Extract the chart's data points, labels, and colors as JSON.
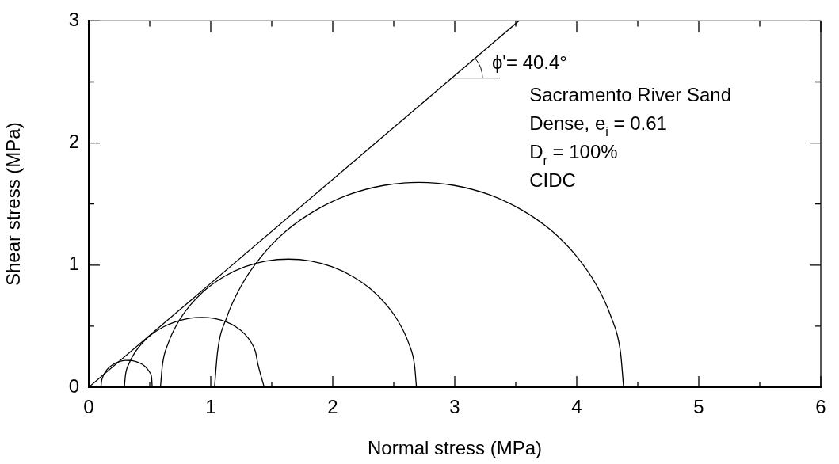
{
  "chart_data": {
    "type": "line",
    "xlabel": "Normal stress (MPa)",
    "ylabel": "Shear stress (MPa)",
    "xlim": [
      0,
      6
    ],
    "ylim": [
      0,
      3
    ],
    "xticks": [
      0,
      {
        "value": 0.5,
        "label": null
      },
      1,
      {
        "value": 1.5,
        "label": null
      },
      2,
      {
        "value": 2.5,
        "label": null
      },
      3,
      {
        "value": 3.5,
        "label": null
      },
      4,
      {
        "value": 4.5,
        "label": null
      },
      5,
      {
        "value": 5.5,
        "label": null
      },
      6
    ],
    "yticks": [
      0,
      {
        "value": 0.5,
        "label": null
      },
      1,
      {
        "value": 1.5,
        "label": null
      },
      2,
      {
        "value": 2.5,
        "label": null
      },
      3
    ],
    "grid": false,
    "legend": false,
    "marker": "none",
    "line_style": "solid",
    "annotations": [
      {
        "text": "ϕ'= 40.4°",
        "x": 2.98,
        "y": 2.53
      },
      "Sacramento River Sand",
      "Dense, e$_{i}$ = 0.61",
      "D$_{r}$ = 100%",
      "CIDC"
    ],
    "series": [
      {
        "color": "#000000",
        "x": [
          0,
          3.525
        ],
        "values": [
          0,
          3
        ]
      },
      {
        "color": "#000000",
        "x": [
          0.1,
          0.104,
          0.115,
          0.134,
          0.159,
          0.19,
          0.225,
          0.262,
          0.302,
          0.343,
          0.382,
          0.419,
          0.452,
          0.479,
          0.501,
          0.515,
          0.52
        ],
        "values": [
          0,
          0.043,
          0.084,
          0.122,
          0.154,
          0.18,
          0.2,
          0.213,
          0.22,
          0.219,
          0.212,
          0.198,
          0.178,
          0.152,
          0.12,
          0.082,
          0
        ]
      },
      {
        "color": "#000000",
        "x": [
          0.292,
          0.301,
          0.331,
          0.379,
          0.444,
          0.524,
          0.616,
          0.716,
          0.82,
          0.925,
          1.027,
          1.122,
          1.206,
          1.277,
          1.331,
          1.367,
          1.384,
          1.438
        ],
        "values": [
          0,
          0.099,
          0.196,
          0.286,
          0.368,
          0.439,
          0.496,
          0.538,
          0.564,
          0.572,
          0.563,
          0.537,
          0.494,
          0.437,
          0.368,
          0.289,
          0.2,
          0
        ]
      },
      {
        "color": "#000000",
        "x": [
          0.588,
          0.604,
          0.651,
          0.728,
          0.833,
          0.963,
          1.113,
          1.279,
          1.455,
          1.637,
          1.819,
          1.995,
          2.161,
          2.311,
          2.441,
          2.546,
          2.623,
          2.67,
          2.686
        ],
        "values": [
          0,
          0.182,
          0.359,
          0.524,
          0.674,
          0.804,
          0.908,
          0.986,
          1.033,
          1.049,
          1.033,
          0.986,
          0.908,
          0.804,
          0.674,
          0.524,
          0.359,
          0.182,
          0
        ]
      },
      {
        "color": "#000000",
        "x": [
          1.031,
          1.056,
          1.132,
          1.254,
          1.42,
          1.625,
          1.865,
          2.131,
          2.416,
          2.707,
          2.998,
          3.283,
          3.549,
          3.789,
          3.994,
          4.16,
          4.282,
          4.358,
          4.384
        ],
        "values": [
          0,
          0.291,
          0.574,
          0.838,
          1.077,
          1.285,
          1.452,
          1.576,
          1.652,
          1.677,
          1.652,
          1.576,
          1.452,
          1.285,
          1.077,
          0.838,
          0.574,
          0.291,
          0
        ]
      }
    ]
  }
}
